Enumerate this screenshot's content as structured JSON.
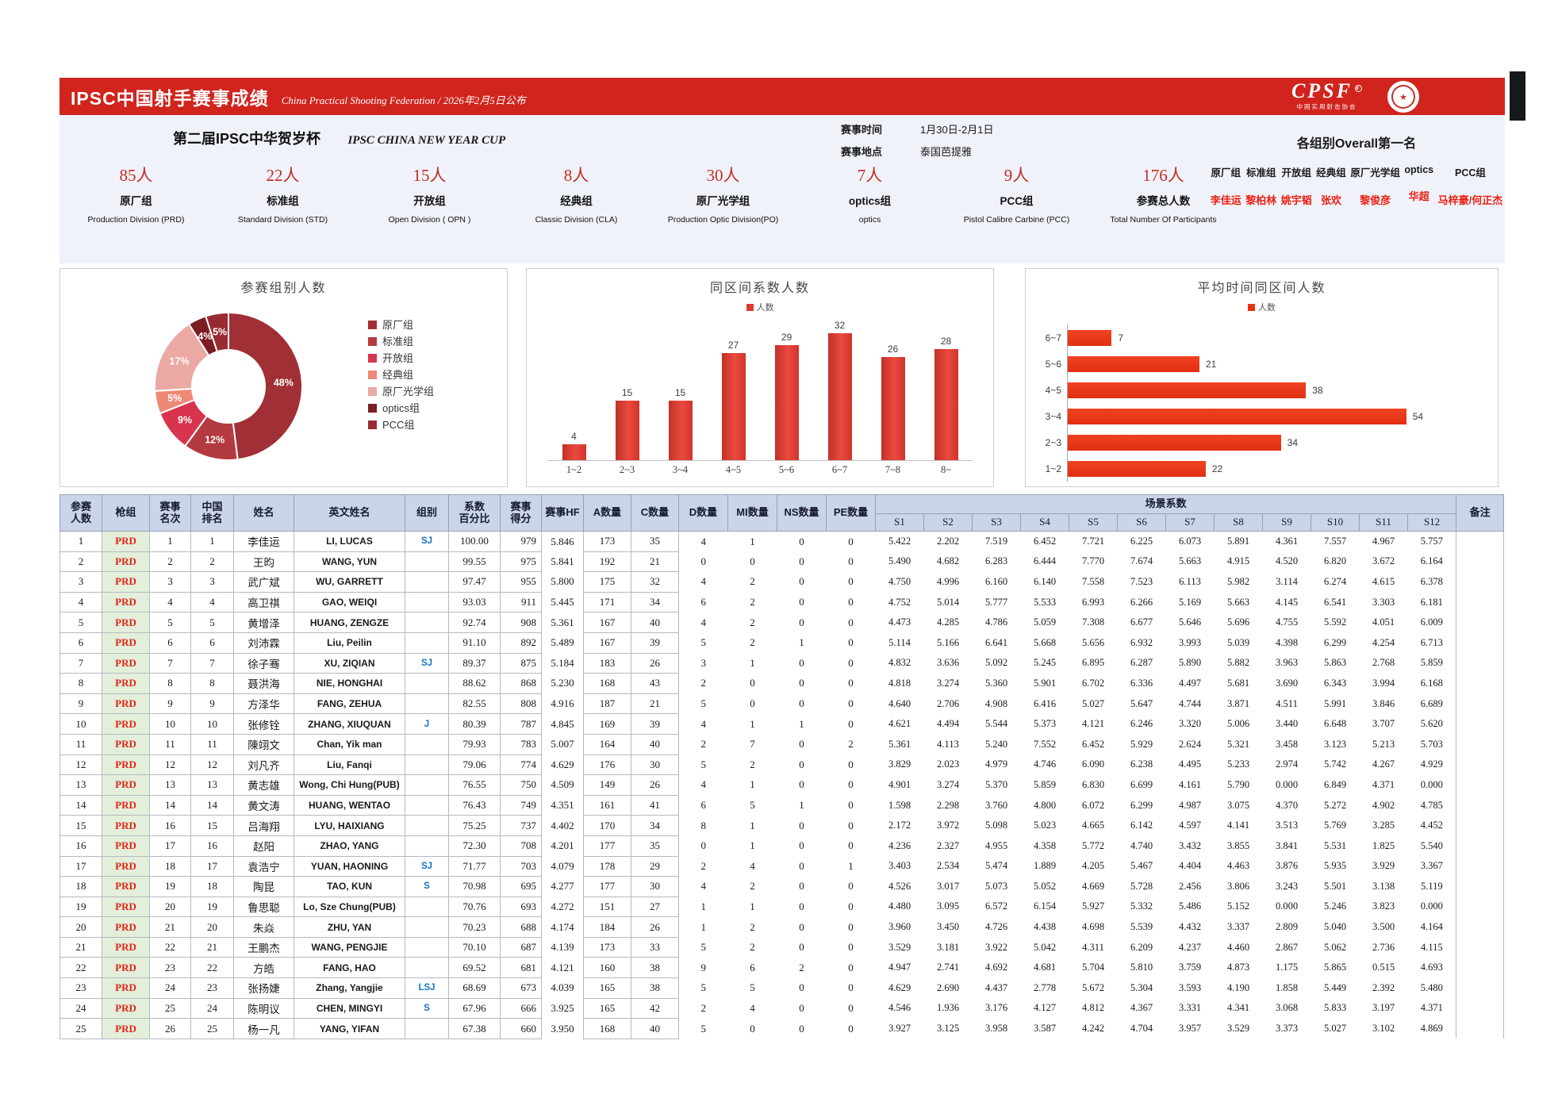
{
  "theme": {
    "brand_red": "#d0241d",
    "stat_red": "#c42b23",
    "winner_red": "#ec1e12",
    "table_header_bg": "#cbd5ea",
    "gun_cell_bg": "#e3efda",
    "gun_text": "#e02518",
    "group_text_blue": "#1472c8"
  },
  "header": {
    "title": "IPSC中国射手赛事成绩",
    "subtitle": "China Practical Shooting Federation / 2026年2月5日公布",
    "logo_text": "CPSF",
    "logo_subtext": "中国实用射击协会",
    "emblem": "federation-seal"
  },
  "info": {
    "event_title_cn": "第二届IPSC中华贺岁杯",
    "event_title_en": "IPSC CHINA NEW YEAR CUP",
    "time_label": "赛事时间",
    "time_value": "1月30日-2月1日",
    "place_label": "赛事地点",
    "place_value": "泰国芭提雅",
    "overall_title": "各组别Overall第一名",
    "overall": [
      {
        "group": "原厂组",
        "winner": "李佳运"
      },
      {
        "group": "标准组",
        "winner": "黎柏林"
      },
      {
        "group": "开放组",
        "winner": "姚宇韬"
      },
      {
        "group": "经典组",
        "winner": "张欢"
      },
      {
        "group": "原厂光学组",
        "winner": "黎俊彦"
      },
      {
        "group": "optics",
        "winner": "华超"
      },
      {
        "group": "PCC组",
        "winner": "马梓豪/何正杰"
      }
    ]
  },
  "stats": [
    {
      "count": "85人",
      "label": "原厂组",
      "sub": "Production Division (PRD)"
    },
    {
      "count": "22人",
      "label": "标准组",
      "sub": "Standard Division (STD)"
    },
    {
      "count": "15人",
      "label": "开放组",
      "sub": "Open Division ( OPN )"
    },
    {
      "count": "8人",
      "label": "经典组",
      "sub": "Classic Division (CLA)"
    },
    {
      "count": "30人",
      "label": "原厂光学组",
      "sub": "Production Optic Division(PO)"
    },
    {
      "count": "7人",
      "label": "optics组",
      "sub": "optics"
    },
    {
      "count": "9人",
      "label": "PCC组",
      "sub": "Pistol Calibre Carbine (PCC)"
    },
    {
      "count": "176人",
      "label": "参赛总人数",
      "sub": "Total Number Of Participants"
    }
  ],
  "chart_data": [
    {
      "type": "pie",
      "title": "参赛组别人数",
      "labels": [
        "原厂组",
        "标准组",
        "开放组",
        "经典组",
        "原厂光学组",
        "optics组",
        "PCC组"
      ],
      "values": [
        48,
        12,
        9,
        5,
        17,
        4,
        5
      ],
      "value_format": "percent",
      "colors": [
        "#a12f36",
        "#b23a40",
        "#d8344e",
        "#ed8976",
        "#eca9a4",
        "#7c1d22",
        "#992b30"
      ],
      "legend_position": "right",
      "donut": true
    },
    {
      "type": "bar",
      "title": "同区间系数人数",
      "legend": "人数",
      "categories": [
        "1~2",
        "2~3",
        "3~4",
        "4~5",
        "5~6",
        "6~7",
        "7~8",
        "8~"
      ],
      "values": [
        4,
        15,
        15,
        27,
        29,
        32,
        26,
        28
      ],
      "color": "#dc3b31",
      "ylim": [
        0,
        32
      ],
      "grid": false
    },
    {
      "type": "bar-horizontal",
      "title": "平均时间同区间人数",
      "legend": "人数",
      "categories": [
        "1~2",
        "2~3",
        "3~4",
        "4~5",
        "5~6",
        "6~7"
      ],
      "values": [
        22,
        34,
        54,
        38,
        21,
        7
      ],
      "color": "#e8350f",
      "xlim": [
        0,
        54
      ],
      "grid": false
    }
  ],
  "table": {
    "columns": [
      "参赛\n人数",
      "枪组",
      "赛事\n名次",
      "中国\n排名",
      "姓名",
      "英文姓名",
      "组别",
      "系数\n百分比",
      "赛事\n得分",
      "赛事HF",
      "A数量",
      "C数量",
      "D数量",
      "MI数量",
      "NS数量",
      "PE数量"
    ],
    "scene_header": "场景系数",
    "scene_cols": [
      "S1",
      "S2",
      "S3",
      "S4",
      "S5",
      "S6",
      "S7",
      "S8",
      "S9",
      "S10",
      "S11",
      "S12"
    ],
    "remark_header": "备注",
    "rows": [
      [
        1,
        "PRD",
        1,
        1,
        "李佳运",
        "LI, LUCAS",
        "SJ",
        "100.00",
        979,
        "5.846",
        173,
        35,
        4,
        1,
        0,
        0,
        "5.422",
        "2.202",
        "7.519",
        "6.452",
        "7.721",
        "6.225",
        "6.073",
        "5.891",
        "4.361",
        "7.557",
        "4.967",
        "5.757",
        ""
      ],
      [
        2,
        "PRD",
        2,
        2,
        "王昀",
        "WANG, YUN",
        "",
        "99.55",
        975,
        "5.841",
        192,
        21,
        0,
        0,
        0,
        0,
        "5.490",
        "4.682",
        "6.283",
        "6.444",
        "7.770",
        "7.674",
        "5.663",
        "4.915",
        "4.520",
        "6.820",
        "3.672",
        "6.164",
        ""
      ],
      [
        3,
        "PRD",
        3,
        3,
        "武广斌",
        "WU, GARRETT",
        "",
        "97.47",
        955,
        "5.800",
        175,
        32,
        4,
        2,
        0,
        0,
        "4.750",
        "4.996",
        "6.160",
        "6.140",
        "7.558",
        "7.523",
        "6.113",
        "5.982",
        "3.114",
        "6.274",
        "4.615",
        "6.378",
        ""
      ],
      [
        4,
        "PRD",
        4,
        4,
        "高卫祺",
        "GAO, WEIQI",
        "",
        "93.03",
        911,
        "5.445",
        171,
        34,
        6,
        2,
        0,
        0,
        "4.752",
        "5.014",
        "5.777",
        "5.533",
        "6.993",
        "6.266",
        "5.169",
        "5.663",
        "4.145",
        "6.541",
        "3.303",
        "6.181",
        ""
      ],
      [
        5,
        "PRD",
        5,
        5,
        "黄增泽",
        "HUANG, ZENGZE",
        "",
        "92.74",
        908,
        "5.361",
        167,
        40,
        4,
        2,
        0,
        0,
        "4.473",
        "4.285",
        "4.786",
        "5.059",
        "7.308",
        "6.677",
        "5.646",
        "5.696",
        "4.755",
        "5.592",
        "4.051",
        "6.009",
        ""
      ],
      [
        6,
        "PRD",
        6,
        6,
        "刘沛霖",
        "Liu, Peilin",
        "",
        "91.10",
        892,
        "5.489",
        167,
        39,
        5,
        2,
        1,
        0,
        "5.114",
        "5.166",
        "6.641",
        "5.668",
        "5.656",
        "6.932",
        "3.993",
        "5.039",
        "4.398",
        "6.299",
        "4.254",
        "6.713",
        ""
      ],
      [
        7,
        "PRD",
        7,
        7,
        "徐子骞",
        "XU, ZIQIAN",
        "SJ",
        "89.37",
        875,
        "5.184",
        183,
        26,
        3,
        1,
        0,
        0,
        "4.832",
        "3.636",
        "5.092",
        "5.245",
        "6.895",
        "6.287",
        "5.890",
        "5.882",
        "3.963",
        "5.863",
        "2.768",
        "5.859",
        ""
      ],
      [
        8,
        "PRD",
        8,
        8,
        "聂洪海",
        "NIE, HONGHAI",
        "",
        "88.62",
        868,
        "5.230",
        168,
        43,
        2,
        0,
        0,
        0,
        "4.818",
        "3.274",
        "5.360",
        "5.901",
        "6.702",
        "6.336",
        "4.497",
        "5.681",
        "3.690",
        "6.343",
        "3.994",
        "6.168",
        ""
      ],
      [
        9,
        "PRD",
        9,
        9,
        "方泽华",
        "FANG, ZEHUA",
        "",
        "82.55",
        808,
        "4.916",
        187,
        21,
        5,
        0,
        0,
        0,
        "4.640",
        "2.706",
        "4.908",
        "6.416",
        "5.027",
        "5.647",
        "4.744",
        "3.871",
        "4.511",
        "5.991",
        "3.846",
        "6.689",
        ""
      ],
      [
        10,
        "PRD",
        10,
        10,
        "张修铨",
        "ZHANG, XIUQUAN",
        "J",
        "80.39",
        787,
        "4.845",
        169,
        39,
        4,
        1,
        1,
        0,
        "4.621",
        "4.494",
        "5.544",
        "5.373",
        "4.121",
        "6.246",
        "3.320",
        "5.006",
        "3.440",
        "6.648",
        "3.707",
        "5.620",
        ""
      ],
      [
        11,
        "PRD",
        11,
        11,
        "陳翊文",
        "Chan, Yik man",
        "",
        "79.93",
        783,
        "5.007",
        164,
        40,
        2,
        7,
        0,
        2,
        "5.361",
        "4.113",
        "5.240",
        "7.552",
        "6.452",
        "5.929",
        "2.624",
        "5.321",
        "3.458",
        "3.123",
        "5.213",
        "5.703",
        ""
      ],
      [
        12,
        "PRD",
        12,
        12,
        "刘凡齐",
        "Liu, Fanqi",
        "",
        "79.06",
        774,
        "4.629",
        176,
        30,
        5,
        2,
        0,
        0,
        "3.829",
        "2.023",
        "4.979",
        "4.746",
        "6.090",
        "6.238",
        "4.495",
        "5.233",
        "2.974",
        "5.742",
        "4.267",
        "4.929",
        ""
      ],
      [
        13,
        "PRD",
        13,
        13,
        "黄志雄",
        "Wong, Chi Hung(PUB)",
        "",
        "76.55",
        750,
        "4.509",
        149,
        26,
        4,
        1,
        0,
        0,
        "4.901",
        "3.274",
        "5.370",
        "5.859",
        "6.830",
        "6.699",
        "4.161",
        "5.790",
        "0.000",
        "6.849",
        "4.371",
        "0.000",
        ""
      ],
      [
        14,
        "PRD",
        14,
        14,
        "黄文涛",
        "HUANG, WENTAO",
        "",
        "76.43",
        749,
        "4.351",
        161,
        41,
        6,
        5,
        1,
        0,
        "1.598",
        "2.298",
        "3.760",
        "4.800",
        "6.072",
        "6.299",
        "4.987",
        "3.075",
        "4.370",
        "5.272",
        "4.902",
        "4.785",
        ""
      ],
      [
        15,
        "PRD",
        16,
        15,
        "吕海翔",
        "LYU, HAIXIANG",
        "",
        "75.25",
        737,
        "4.402",
        170,
        34,
        8,
        1,
        0,
        0,
        "2.172",
        "3.972",
        "5.098",
        "5.023",
        "4.665",
        "6.142",
        "4.597",
        "4.141",
        "3.513",
        "5.769",
        "3.285",
        "4.452",
        ""
      ],
      [
        16,
        "PRD",
        17,
        16,
        "赵阳",
        "ZHAO, YANG",
        "",
        "72.30",
        708,
        "4.201",
        177,
        35,
        0,
        1,
        0,
        0,
        "4.236",
        "2.327",
        "4.955",
        "4.358",
        "5.772",
        "4.740",
        "3.432",
        "3.855",
        "3.841",
        "5.531",
        "1.825",
        "5.540",
        ""
      ],
      [
        17,
        "PRD",
        18,
        17,
        "袁浩宁",
        "YUAN, HAONING",
        "SJ",
        "71.77",
        703,
        "4.079",
        178,
        29,
        2,
        4,
        0,
        1,
        "3.403",
        "2.534",
        "5.474",
        "1.889",
        "4.205",
        "5.467",
        "4.404",
        "4.463",
        "3.876",
        "5.935",
        "3.929",
        "3.367",
        ""
      ],
      [
        18,
        "PRD",
        19,
        18,
        "陶昆",
        "TAO, KUN",
        "S",
        "70.98",
        695,
        "4.277",
        177,
        30,
        4,
        2,
        0,
        0,
        "4.526",
        "3.017",
        "5.073",
        "5.052",
        "4.669",
        "5.728",
        "2.456",
        "3.806",
        "3.243",
        "5.501",
        "3.138",
        "5.119",
        ""
      ],
      [
        19,
        "PRD",
        20,
        19,
        "鲁思聪",
        "Lo, Sze Chung(PUB)",
        "",
        "70.76",
        693,
        "4.272",
        151,
        27,
        1,
        1,
        0,
        0,
        "4.480",
        "3.095",
        "6.572",
        "6.154",
        "5.927",
        "5.332",
        "5.486",
        "5.152",
        "0.000",
        "5.246",
        "3.823",
        "0.000",
        ""
      ],
      [
        20,
        "PRD",
        21,
        20,
        "朱焱",
        "ZHU, YAN",
        "",
        "70.23",
        688,
        "4.174",
        184,
        26,
        1,
        2,
        0,
        0,
        "3.960",
        "3.450",
        "4.726",
        "4.438",
        "4.698",
        "5.539",
        "4.432",
        "3.337",
        "2.809",
        "5.040",
        "3.500",
        "4.164",
        ""
      ],
      [
        21,
        "PRD",
        22,
        21,
        "王鹏杰",
        "WANG, PENGJIE",
        "",
        "70.10",
        687,
        "4.139",
        173,
        33,
        5,
        2,
        0,
        0,
        "3.529",
        "3.181",
        "3.922",
        "5.042",
        "4.311",
        "6.209",
        "4.237",
        "4.460",
        "2.867",
        "5.062",
        "2.736",
        "4.115",
        ""
      ],
      [
        22,
        "PRD",
        23,
        22,
        "方皓",
        "FANG, HAO",
        "",
        "69.52",
        681,
        "4.121",
        160,
        38,
        9,
        6,
        2,
        0,
        "4.947",
        "2.741",
        "4.692",
        "4.681",
        "5.704",
        "5.810",
        "3.759",
        "4.873",
        "1.175",
        "5.865",
        "0.515",
        "4.693",
        ""
      ],
      [
        23,
        "PRD",
        24,
        23,
        "张扬婕",
        "Zhang, Yangjie",
        "LSJ",
        "68.69",
        673,
        "4.039",
        165,
        38,
        5,
        5,
        0,
        0,
        "4.629",
        "2.690",
        "4.437",
        "2.778",
        "5.672",
        "5.304",
        "3.593",
        "4.190",
        "1.858",
        "5.449",
        "2.392",
        "5.480",
        ""
      ],
      [
        24,
        "PRD",
        25,
        24,
        "陈明议",
        "CHEN, MINGYI",
        "S",
        "67.96",
        666,
        "3.925",
        165,
        42,
        2,
        4,
        0,
        0,
        "4.546",
        "1.936",
        "3.176",
        "4.127",
        "4.812",
        "4.367",
        "3.331",
        "4.341",
        "3.068",
        "5.833",
        "3.197",
        "4.371",
        ""
      ],
      [
        25,
        "PRD",
        26,
        25,
        "杨一凡",
        "YANG, YIFAN",
        "",
        "67.38",
        660,
        "3.950",
        168,
        40,
        5,
        0,
        0,
        0,
        "3.927",
        "3.125",
        "3.958",
        "3.587",
        "4.242",
        "4.704",
        "3.957",
        "3.529",
        "3.373",
        "5.027",
        "3.102",
        "4.869",
        ""
      ]
    ]
  }
}
